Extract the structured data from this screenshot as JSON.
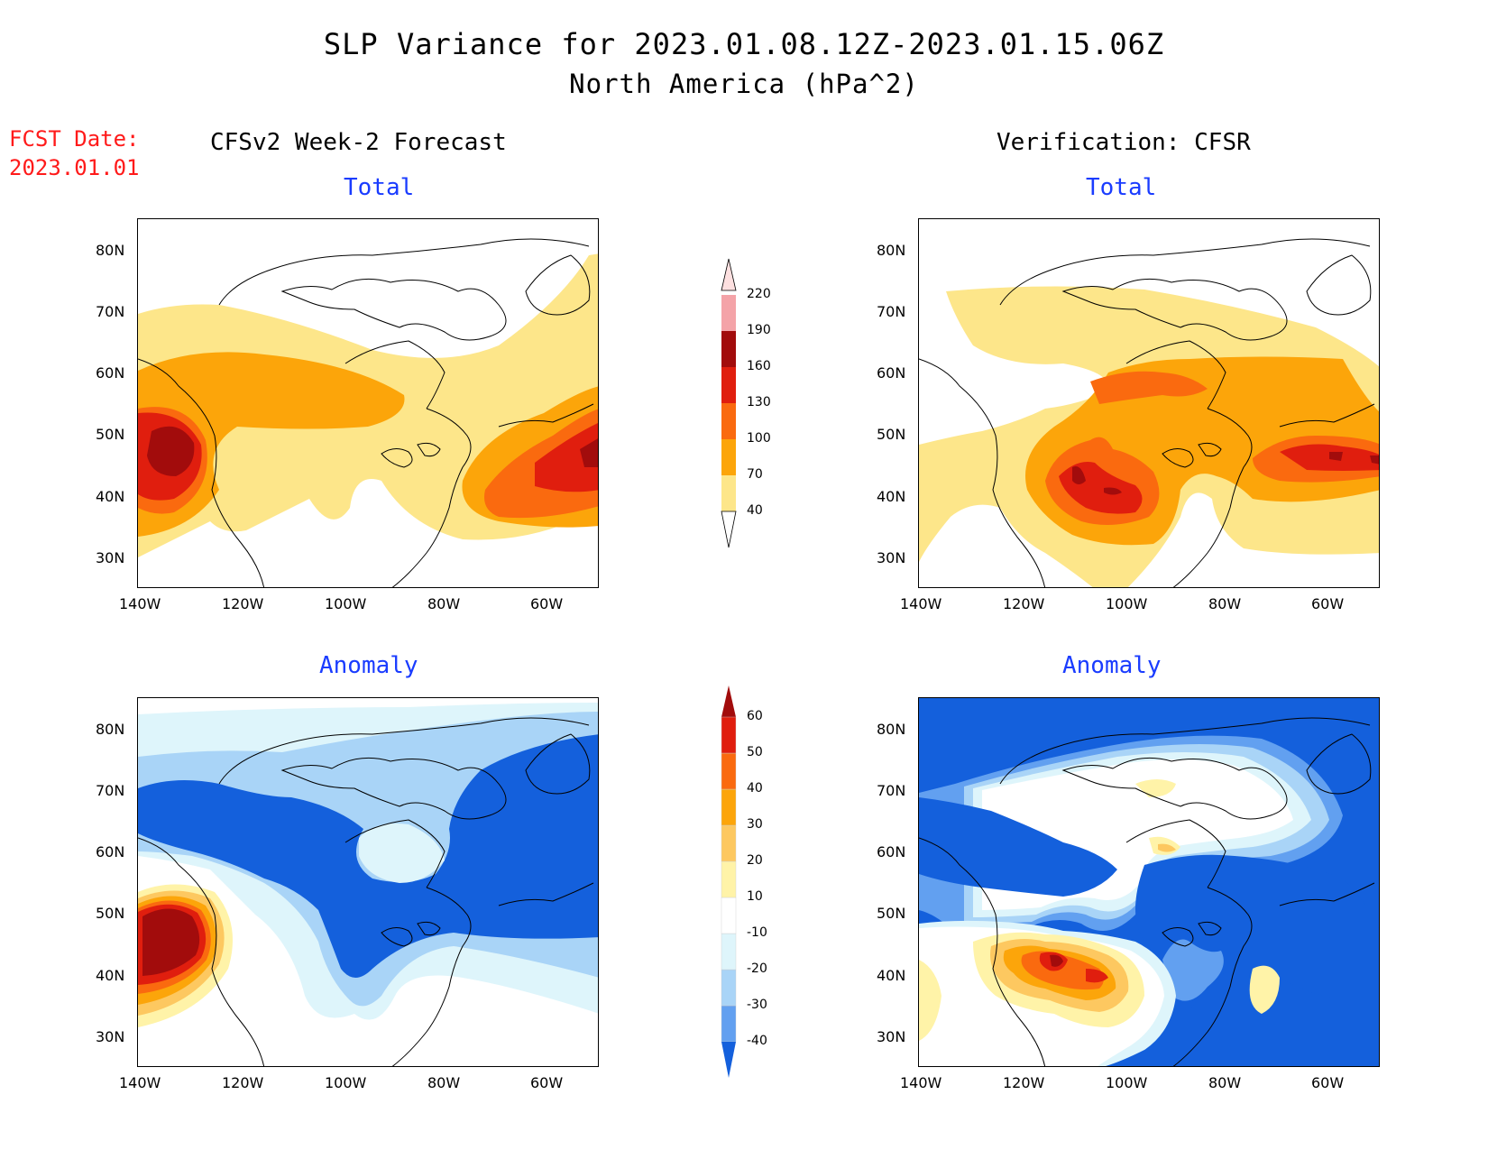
{
  "title": "SLP Variance for 2023.01.08.12Z-2023.01.15.06Z",
  "subtitle": "North America (hPa^2)",
  "fcst_label": "FCST Date:",
  "fcst_date": "2023.01.01",
  "left_column": "CFSv2 Week-2 Forecast",
  "right_column": "Verification: CFSR",
  "panel_titles": {
    "top_left": "Total",
    "top_right": "Total",
    "bottom_left": "Anomaly",
    "bottom_right": "Anomaly"
  },
  "axes": {
    "lat_ticks": [
      "80N",
      "70N",
      "60N",
      "50N",
      "40N",
      "30N"
    ],
    "lon_ticks": [
      "140W",
      "120W",
      "100W",
      "80W",
      "60W"
    ]
  },
  "colors": {
    "total": [
      "#fde68a",
      "#fca50a",
      "#fa6a0f",
      "#e01e0e",
      "#a20c0c",
      "#f4a3a8",
      "#fde0e0"
    ],
    "anomaly_neg": [
      "#1460dc",
      "#62a0f0",
      "#a9d4f7",
      "#def5fb"
    ],
    "anomaly_pos": [
      "#fff3a8",
      "#fdc860",
      "#fca50a",
      "#fa6a0f",
      "#e01e0e",
      "#a20c0c"
    ]
  },
  "total_colorbar": {
    "labels": [
      "40",
      "70",
      "100",
      "130",
      "160",
      "190",
      "220"
    ]
  },
  "anomaly_colorbar": {
    "labels": [
      "-40",
      "-30",
      "-20",
      "-10",
      "10",
      "20",
      "30",
      "40",
      "50",
      "60"
    ]
  }
}
